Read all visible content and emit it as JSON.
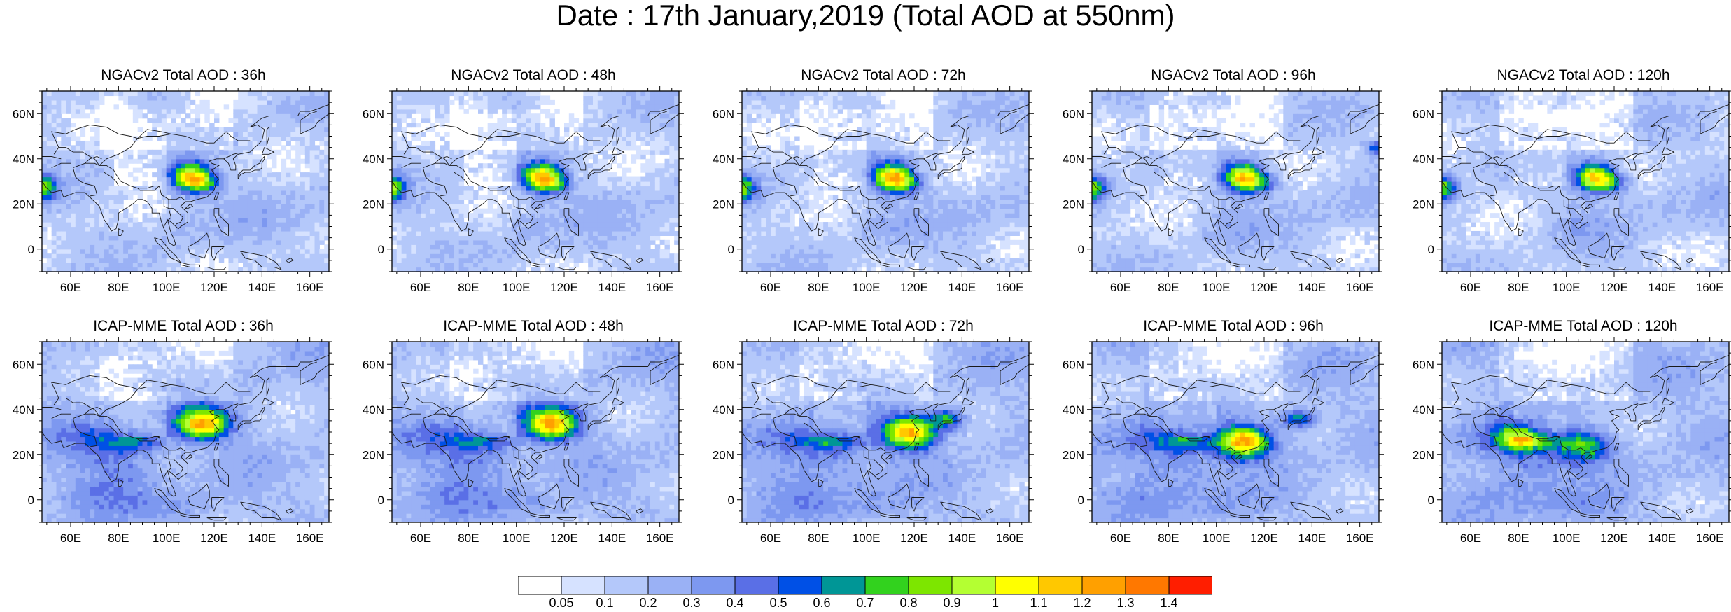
{
  "title": "Date : 17th January,2019 (Total AOD at 550nm)",
  "panels": [
    {
      "title": "NGACv2 Total AOD : 36h",
      "model": "ngac",
      "lead": 36
    },
    {
      "title": "NGACv2 Total AOD : 48h",
      "model": "ngac",
      "lead": 48
    },
    {
      "title": "NGACv2 Total AOD : 72h",
      "model": "ngac",
      "lead": 72
    },
    {
      "title": "NGACv2 Total AOD : 96h",
      "model": "ngac",
      "lead": 96
    },
    {
      "title": "NGACv2 Total AOD : 120h",
      "model": "ngac",
      "lead": 120
    },
    {
      "title": "ICAP-MME Total AOD : 36h",
      "model": "icap",
      "lead": 36
    },
    {
      "title": "ICAP-MME Total AOD : 48h",
      "model": "icap",
      "lead": 48
    },
    {
      "title": "ICAP-MME Total AOD : 72h",
      "model": "icap",
      "lead": 72
    },
    {
      "title": "ICAP-MME Total AOD : 96h",
      "model": "icap",
      "lead": 96
    },
    {
      "title": "ICAP-MME Total AOD : 120h",
      "model": "icap",
      "lead": 120
    }
  ],
  "map": {
    "lon_range": [
      48,
      168
    ],
    "lat_range": [
      -10,
      70
    ],
    "lon_ticks": [
      "60E",
      "80E",
      "100E",
      "120E",
      "140E",
      "160E"
    ],
    "lon_tick_values": [
      60,
      80,
      100,
      120,
      140,
      160
    ],
    "lat_ticks": [
      "60N",
      "40N",
      "20N",
      "0"
    ],
    "lat_tick_values": [
      60,
      40,
      20,
      0
    ]
  },
  "colorbar": {
    "labels": [
      "0.05",
      "0.1",
      "0.2",
      "0.3",
      "0.4",
      "0.5",
      "0.6",
      "0.7",
      "0.8",
      "0.9",
      "1",
      "1.1",
      "1.2",
      "1.3",
      "1.4"
    ],
    "colors": [
      "#ffffff",
      "#d6e2ff",
      "#b4c8fa",
      "#9ab1f5",
      "#7d98f0",
      "#5a6fe6",
      "#0050e6",
      "#009696",
      "#32d21e",
      "#7de600",
      "#b4ff32",
      "#ffff00",
      "#ffc800",
      "#ffa000",
      "#ff7800",
      "#ff1e00"
    ]
  }
}
